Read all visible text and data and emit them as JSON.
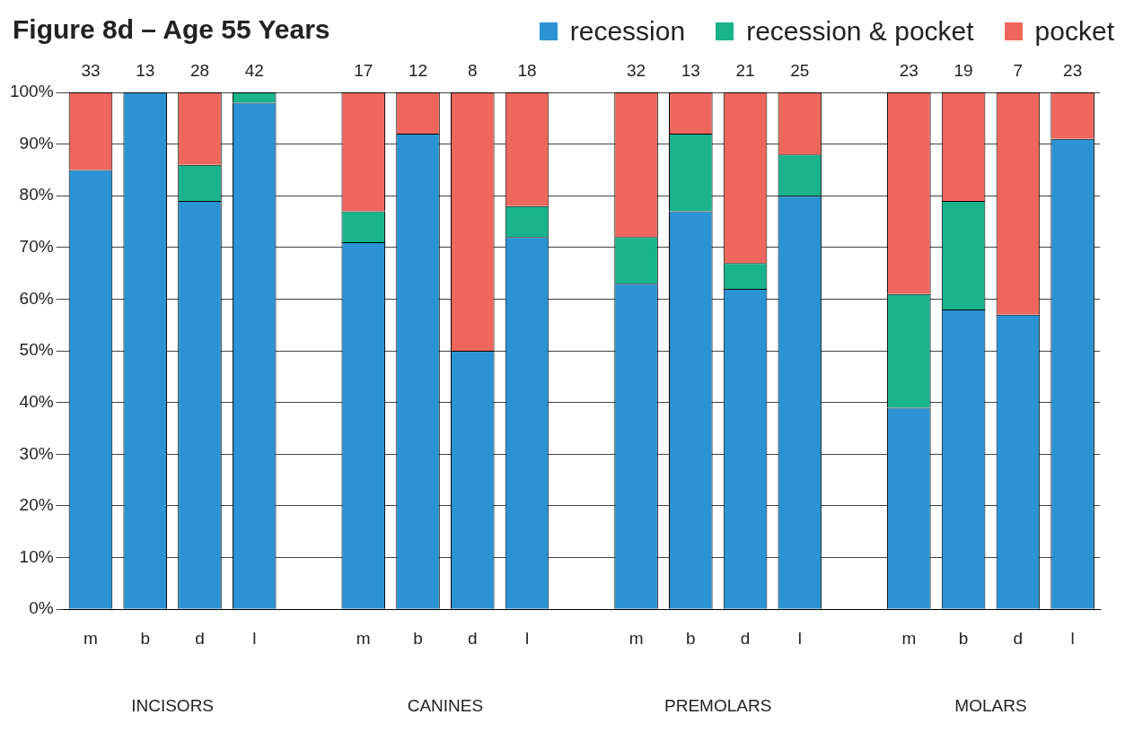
{
  "chart_data": {
    "type": "bar",
    "title": "Figure 8d – Age 55 Years",
    "stacked": true,
    "categories": [
      "m",
      "b",
      "d",
      "l",
      null,
      "m",
      "b",
      "d",
      "l",
      null,
      "m",
      "b",
      "d",
      "l",
      null,
      "m",
      "b",
      "d",
      "l"
    ],
    "series": [
      {
        "name": "recession",
        "color": "#2b93d3",
        "values": [
          85,
          100,
          79,
          98,
          null,
          71,
          92,
          50,
          72,
          null,
          63,
          77,
          62,
          80,
          null,
          39,
          58,
          57,
          91
        ]
      },
      {
        "name": "recession & pocket",
        "color": "#19b38c",
        "values": [
          0,
          0,
          7,
          2,
          null,
          6,
          0,
          0,
          6,
          null,
          9,
          15,
          5,
          8,
          null,
          22,
          21,
          0,
          0
        ]
      },
      {
        "name": "pocket",
        "color": "#ef675c",
        "values": [
          15,
          0,
          14,
          0,
          null,
          23,
          8,
          50,
          22,
          null,
          28,
          8,
          33,
          12,
          null,
          39,
          21,
          43,
          9
        ]
      }
    ],
    "annotations": [
      "33",
      "13",
      "28",
      "42",
      "17",
      "12",
      "8",
      "18",
      "32",
      "13",
      "21",
      "25",
      "23",
      "19",
      "7",
      "23",
      "INCISORS",
      "CANINES",
      "PREMOLARS",
      "MOLARS"
    ],
    "ylim": [
      0,
      100
    ],
    "yticks": [
      {
        "value": 0,
        "label": "0%"
      },
      {
        "value": 10,
        "label": "10%"
      },
      {
        "value": 20,
        "label": "20%"
      },
      {
        "value": 30,
        "label": "30%"
      },
      {
        "value": 40,
        "label": "40%"
      },
      {
        "value": 50,
        "label": "50%"
      },
      {
        "value": 60,
        "label": "60%"
      },
      {
        "value": 70,
        "label": "70%"
      },
      {
        "value": 80,
        "label": "80%"
      },
      {
        "value": 90,
        "label": "90%"
      },
      {
        "value": 100,
        "label": "100%"
      }
    ],
    "grid": "y",
    "legend": "top right"
  }
}
